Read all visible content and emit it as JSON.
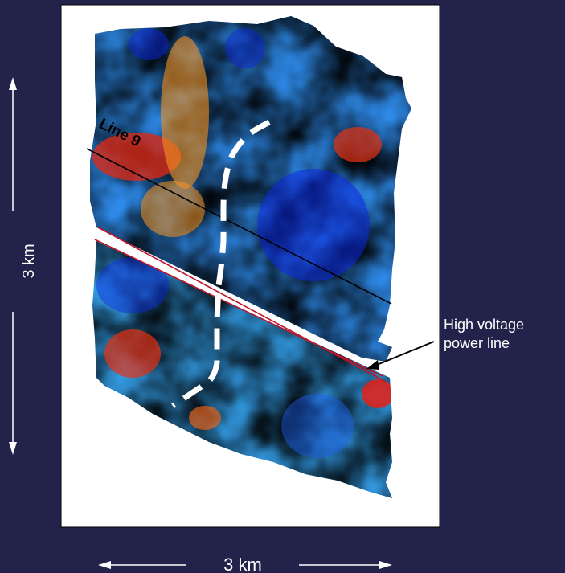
{
  "map": {
    "line_label": "Line 9",
    "annotation": [
      "High voltage",
      "power line"
    ],
    "vertical_scale": "3 km",
    "horizontal_scale": "3 km"
  },
  "colors": {
    "background": "#22224a",
    "frame": "#ffffff",
    "survey_line": "#000000",
    "power_line": "#c0152a",
    "dashed_feature": "#ffffff",
    "colormap": [
      "#0a1ee6",
      "#1e78f0",
      "#2ad2e6",
      "#46e696",
      "#b4f03c",
      "#f0f01e",
      "#ffb41e",
      "#f56414",
      "#e61e14"
    ]
  }
}
